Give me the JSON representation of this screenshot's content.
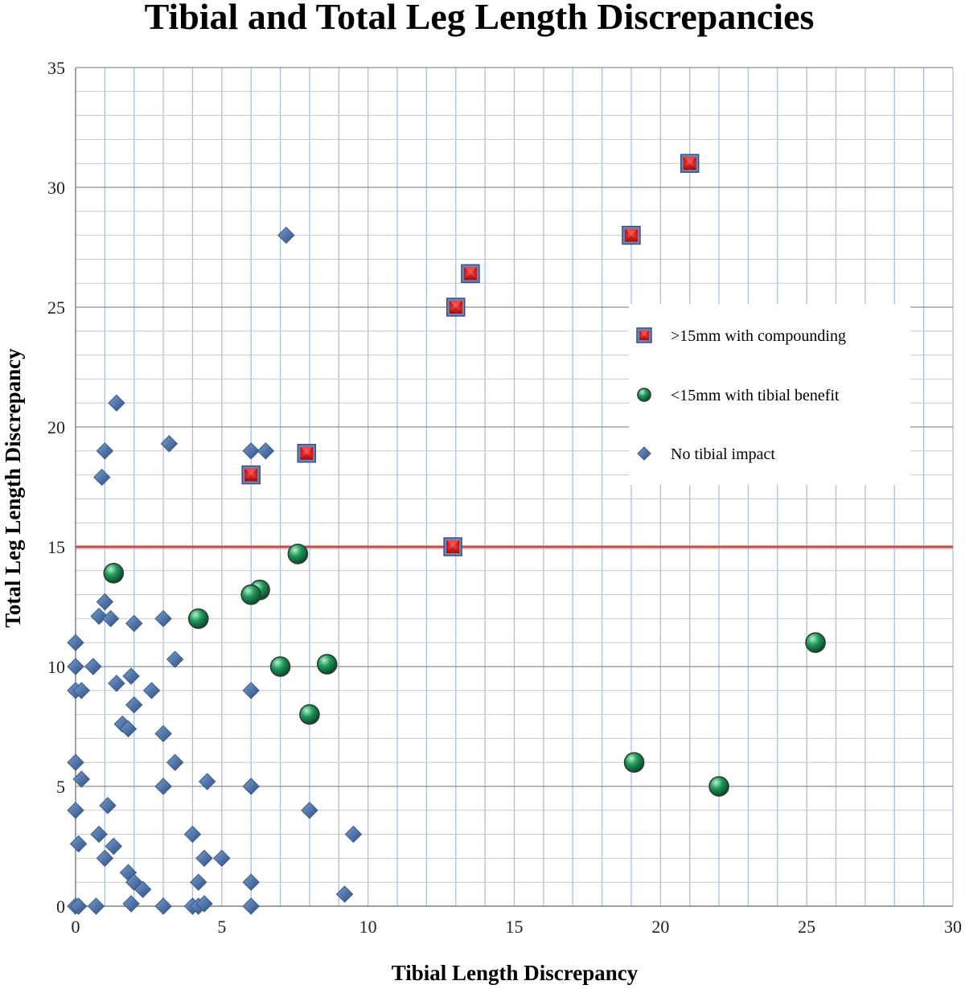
{
  "chart_data": {
    "type": "scatter",
    "title": "Tibial and Total Leg Length Discrepancies",
    "xlabel": "Tibial Length Discrepancy",
    "ylabel": "Total Leg Length Discrepancy",
    "xlim": [
      0,
      30
    ],
    "ylim": [
      0,
      35
    ],
    "x_ticks": [
      0,
      5,
      10,
      15,
      20,
      25,
      30
    ],
    "y_ticks": [
      0,
      5,
      10,
      15,
      20,
      25,
      30,
      35
    ],
    "grid": true,
    "legend_position": "right",
    "reference_line": {
      "y": 15,
      "color": "#c0504d"
    },
    "series": [
      {
        "name": ">15mm with compounding",
        "marker": "square",
        "color": "#d9201f",
        "points": [
          [
            21,
            31
          ],
          [
            19,
            28
          ],
          [
            13.5,
            26.4
          ],
          [
            13,
            25
          ],
          [
            7.9,
            18.9
          ],
          [
            6,
            18
          ],
          [
            12.9,
            15
          ]
        ]
      },
      {
        "name": "<15mm with tibial benefit",
        "marker": "circle",
        "color": "#1e8a55",
        "points": [
          [
            7.6,
            14.7
          ],
          [
            1.3,
            13.9
          ],
          [
            6.3,
            13.2
          ],
          [
            6,
            13
          ],
          [
            4.2,
            12
          ],
          [
            7,
            10
          ],
          [
            8.6,
            10.1
          ],
          [
            8,
            8
          ],
          [
            25.3,
            11
          ],
          [
            19.1,
            6
          ],
          [
            22,
            5
          ]
        ]
      },
      {
        "name": "No tibial impact",
        "marker": "diamond",
        "color": "#4f74a8",
        "points": [
          [
            7.2,
            28
          ],
          [
            1.4,
            21
          ],
          [
            3.2,
            19.3
          ],
          [
            1,
            19
          ],
          [
            6,
            19
          ],
          [
            6.5,
            19
          ],
          [
            0.9,
            17.9
          ],
          [
            1,
            12.7
          ],
          [
            0.8,
            12.1
          ],
          [
            1.2,
            12
          ],
          [
            2,
            11.8
          ],
          [
            3,
            12
          ],
          [
            0,
            11
          ],
          [
            0,
            10
          ],
          [
            0.6,
            10
          ],
          [
            1.9,
            9.6
          ],
          [
            1.4,
            9.3
          ],
          [
            3.4,
            10.3
          ],
          [
            0,
            9
          ],
          [
            0.2,
            9
          ],
          [
            2.6,
            9
          ],
          [
            6,
            9
          ],
          [
            2,
            8.4
          ],
          [
            1.6,
            7.6
          ],
          [
            1.8,
            7.4
          ],
          [
            3,
            7.2
          ],
          [
            0,
            6
          ],
          [
            3.4,
            6
          ],
          [
            0.2,
            5.3
          ],
          [
            3,
            5
          ],
          [
            4.5,
            5.2
          ],
          [
            6,
            5
          ],
          [
            1.1,
            4.2
          ],
          [
            0,
            4
          ],
          [
            8,
            4
          ],
          [
            0.8,
            3
          ],
          [
            4,
            3
          ],
          [
            9.5,
            3
          ],
          [
            0.1,
            2.6
          ],
          [
            1.3,
            2.5
          ],
          [
            1,
            2
          ],
          [
            4.4,
            2
          ],
          [
            5,
            2
          ],
          [
            1.8,
            1.4
          ],
          [
            2,
            1
          ],
          [
            2.3,
            0.7
          ],
          [
            4.2,
            1
          ],
          [
            6,
            1
          ],
          [
            9.2,
            0.5
          ],
          [
            0,
            0
          ],
          [
            0.1,
            0
          ],
          [
            0.7,
            0
          ],
          [
            1.9,
            0.1
          ],
          [
            3,
            0
          ],
          [
            4,
            0
          ],
          [
            4.2,
            0
          ],
          [
            4.4,
            0.1
          ],
          [
            6,
            0
          ]
        ]
      }
    ]
  }
}
